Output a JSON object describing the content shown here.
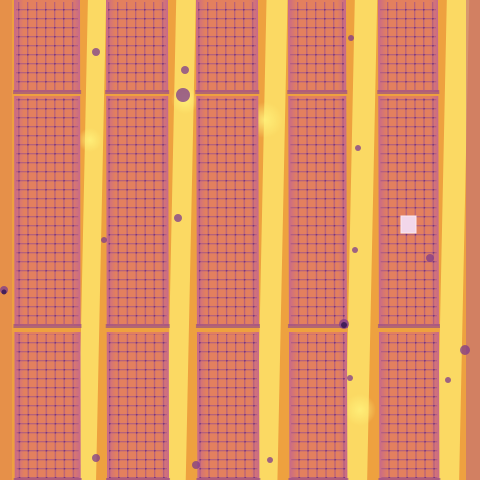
{
  "image": {
    "kind": "thermal aerial photograph of solar panel rows",
    "palette": {
      "ground_hot": "#f7c24a",
      "ground_warm": "#eea13f",
      "ground_bright": "#fde36a",
      "panel_fill": "#e47f5d",
      "panel_frame": "#9a4f86",
      "cell_grid": "#b05a7e",
      "hotspot": "#f2d7ea",
      "shadow": "#7d3b8c",
      "dark_spot": "#3b1b55"
    },
    "rows": 5,
    "panel_segments_per_row": 3,
    "hotspot_count": 1
  }
}
